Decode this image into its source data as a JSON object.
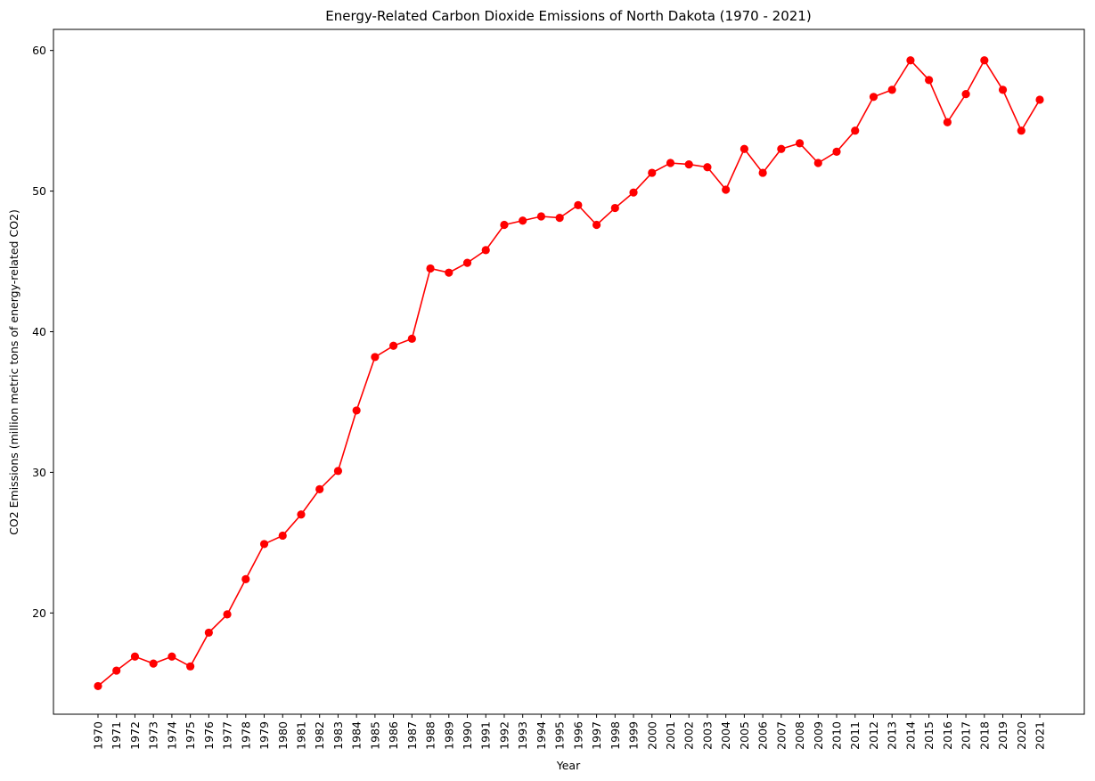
{
  "chart_data": {
    "type": "line",
    "title": "Energy-Related Carbon Dioxide Emissions of North Dakota (1970 - 2021)",
    "xlabel": "Year",
    "ylabel": "CO2 Emissions (million metric tons of energy-related CO2)",
    "ylim": [
      12.8,
      61.5
    ],
    "yticks": [
      20,
      30,
      40,
      50,
      60
    ],
    "grid": false,
    "legend": "none",
    "series_color": "#ff0000",
    "marker": "circle",
    "x": [
      "1970",
      "1971",
      "1972",
      "1973",
      "1974",
      "1975",
      "1976",
      "1977",
      "1978",
      "1979",
      "1980",
      "1981",
      "1982",
      "1983",
      "1984",
      "1985",
      "1986",
      "1987",
      "1988",
      "1989",
      "1990",
      "1991",
      "1992",
      "1993",
      "1994",
      "1995",
      "1996",
      "1997",
      "1998",
      "1999",
      "2000",
      "2001",
      "2002",
      "2003",
      "2004",
      "2005",
      "2006",
      "2007",
      "2008",
      "2009",
      "2010",
      "2011",
      "2012",
      "2013",
      "2014",
      "2015",
      "2016",
      "2017",
      "2018",
      "2019",
      "2020",
      "2021"
    ],
    "values": [
      14.8,
      15.9,
      16.9,
      16.4,
      16.9,
      16.2,
      18.6,
      19.9,
      22.4,
      24.9,
      25.5,
      27.0,
      28.8,
      30.1,
      34.4,
      38.2,
      39.0,
      39.5,
      44.5,
      44.2,
      44.9,
      45.8,
      47.6,
      47.9,
      48.2,
      48.1,
      49.0,
      47.6,
      48.8,
      49.9,
      51.3,
      52.0,
      51.9,
      51.7,
      50.1,
      53.0,
      51.3,
      53.0,
      53.4,
      52.0,
      52.8,
      54.3,
      56.7,
      57.2,
      59.3,
      57.9,
      54.9,
      56.9,
      59.3,
      57.2,
      54.3,
      56.5
    ]
  }
}
